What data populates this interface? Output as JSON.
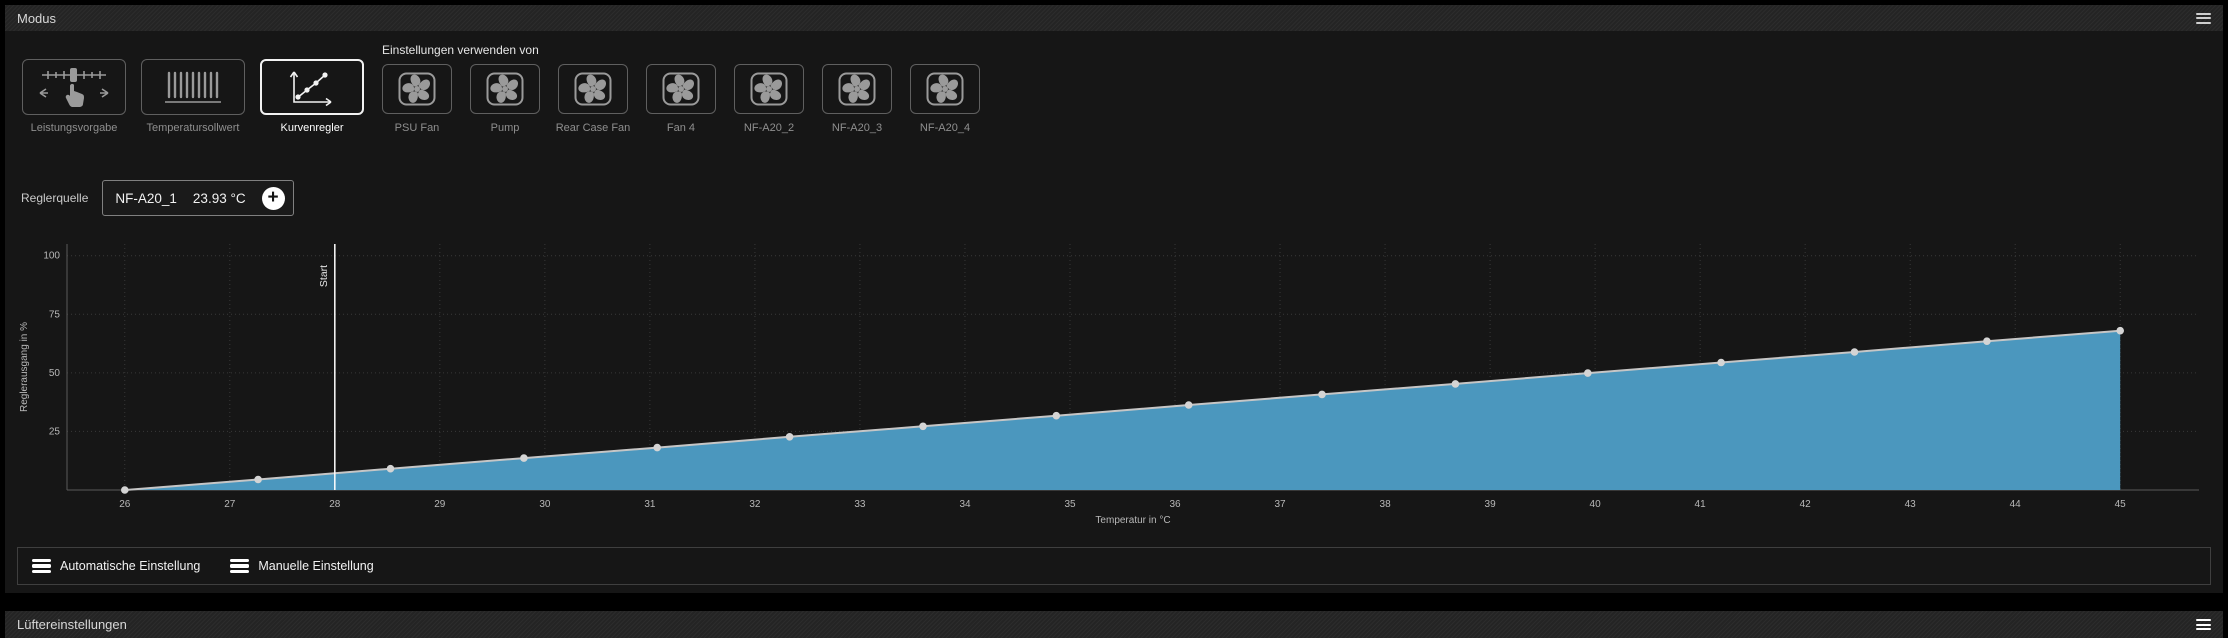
{
  "window": {
    "title": "Modus"
  },
  "modes": {
    "buttons": [
      {
        "label": "Leistungsvorgabe",
        "icon": "sliders-hand-icon",
        "selected": false
      },
      {
        "label": "Temperatursollwert",
        "icon": "radiator-icon",
        "selected": false
      },
      {
        "label": "Kurvenregler",
        "icon": "curve-icon",
        "selected": true
      }
    ],
    "use_settings_from": {
      "label": "Einstellungen verwenden von",
      "fans": [
        {
          "label": "PSU Fan",
          "icon": "fan-icon"
        },
        {
          "label": "Pump",
          "icon": "fan-icon"
        },
        {
          "label": "Rear Case Fan",
          "icon": "fan-icon"
        },
        {
          "label": "Fan 4",
          "icon": "fan-icon"
        },
        {
          "label": "NF-A20_2",
          "icon": "fan-icon"
        },
        {
          "label": "NF-A20_3",
          "icon": "fan-icon"
        },
        {
          "label": "NF-A20_4",
          "icon": "fan-icon"
        }
      ]
    }
  },
  "source": {
    "label": "Reglerquelle",
    "sensor_name": "NF-A20_1",
    "sensor_value": "23.93 °C",
    "add_icon": "plus-icon"
  },
  "chart_data": {
    "type": "area",
    "title": "",
    "xlabel": "Temperatur in °C",
    "ylabel": "Reglerausgang in %",
    "xlim": [
      25.45,
      45.75
    ],
    "ylim": [
      0,
      105
    ],
    "x_ticks": [
      26,
      27,
      28,
      29,
      30,
      31,
      32,
      33,
      34,
      35,
      36,
      37,
      38,
      39,
      40,
      41,
      42,
      43,
      44,
      45
    ],
    "y_ticks": [
      25,
      50,
      75,
      100
    ],
    "grid": true,
    "legend": false,
    "start_marker": {
      "label": "Start",
      "x": 28
    },
    "series": [
      {
        "name": "Kurvenregler",
        "x": [
          26,
          27.27,
          28.53,
          29.8,
          31.07,
          32.33,
          33.6,
          34.87,
          36.13,
          37.4,
          38.67,
          39.93,
          41.2,
          42.47,
          43.73,
          45
        ],
        "y": [
          0,
          4.5,
          9.1,
          13.6,
          18.1,
          22.7,
          27.2,
          31.7,
          36.3,
          40.8,
          45.3,
          49.9,
          54.4,
          58.9,
          63.5,
          68
        ]
      }
    ],
    "colors": {
      "fill": "#4b97be",
      "line": "#c6c6c6",
      "marker": "#d4d4d4",
      "grid": "#383838",
      "axis": "#5a5a5a",
      "start_line": "#ffffff",
      "tick_text": "#b8b8b8"
    }
  },
  "footer_buttons": [
    {
      "label": "Automatische Einstellung",
      "icon": "hamburger-icon"
    },
    {
      "label": "Manuelle Einstellung",
      "icon": "hamburger-icon"
    }
  ],
  "section_below": {
    "title": "Lüftereinstellungen"
  }
}
